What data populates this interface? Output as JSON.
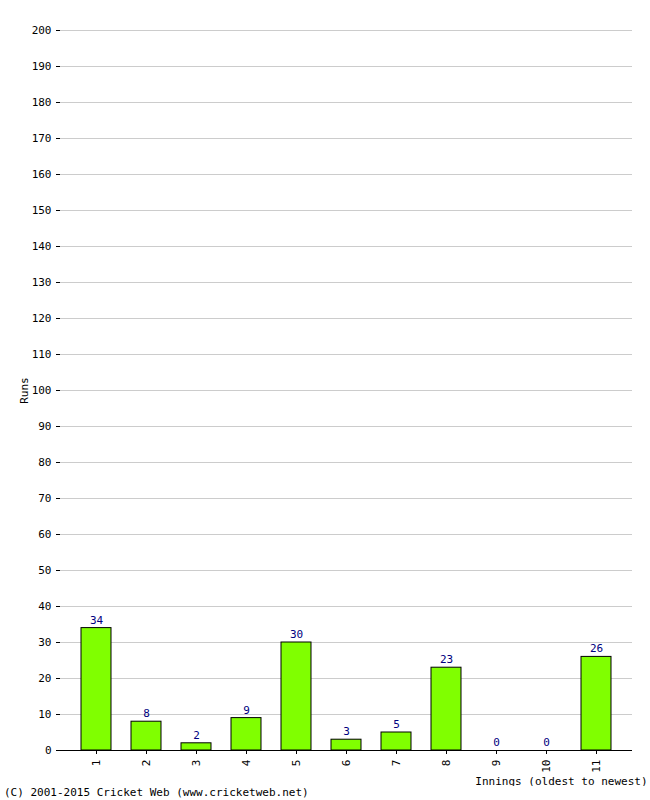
{
  "chart_data": {
    "type": "bar",
    "categories": [
      "1",
      "2",
      "3",
      "4",
      "5",
      "6",
      "7",
      "8",
      "9",
      "10",
      "11"
    ],
    "values": [
      34,
      8,
      2,
      9,
      30,
      3,
      5,
      23,
      0,
      0,
      26
    ],
    "color": "#80ff00",
    "x_label": "Innings (oldest to newest)",
    "y_label": "Runs",
    "caption": "(C) 2001-2015 Cricket Web (www.cricketweb.net)",
    "ylim": [
      0,
      200
    ],
    "yticks": [
      0,
      10,
      20,
      30,
      40,
      50,
      60,
      70,
      80,
      90,
      100,
      110,
      120,
      130,
      140,
      150,
      160,
      170,
      180,
      190,
      200
    ],
    "grid": true,
    "data_labels": true
  }
}
